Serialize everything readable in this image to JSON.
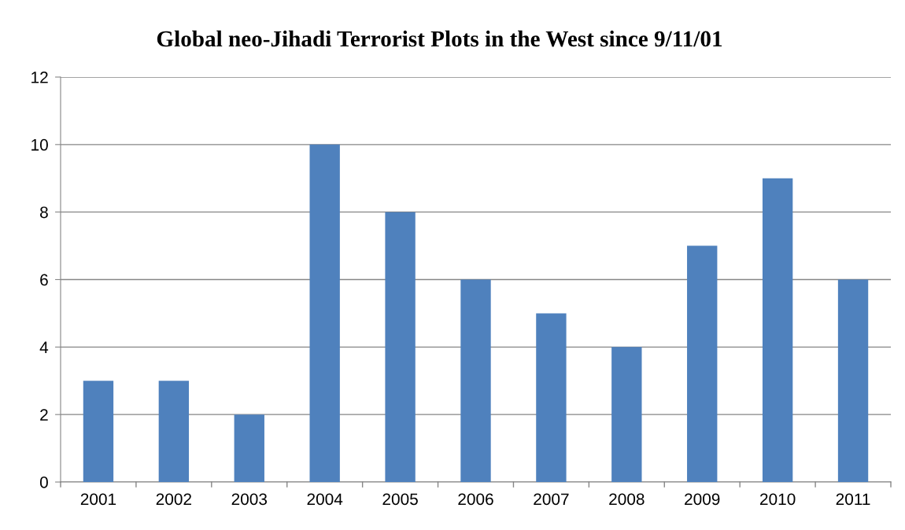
{
  "chart_data": {
    "type": "bar",
    "title": "Global neo-Jihadi Terrorist Plots in the West since 9/11/01",
    "categories": [
      "2001",
      "2002",
      "2003",
      "2004",
      "2005",
      "2006",
      "2007",
      "2008",
      "2009",
      "2010",
      "2011"
    ],
    "values": [
      3,
      3,
      2,
      10,
      8,
      6,
      5,
      4,
      7,
      9,
      6
    ],
    "color": "#4f81bd",
    "ylim": [
      0,
      12
    ],
    "yticks": [
      0,
      2,
      4,
      6,
      8,
      10,
      12
    ],
    "grid": "y",
    "legend": false
  }
}
